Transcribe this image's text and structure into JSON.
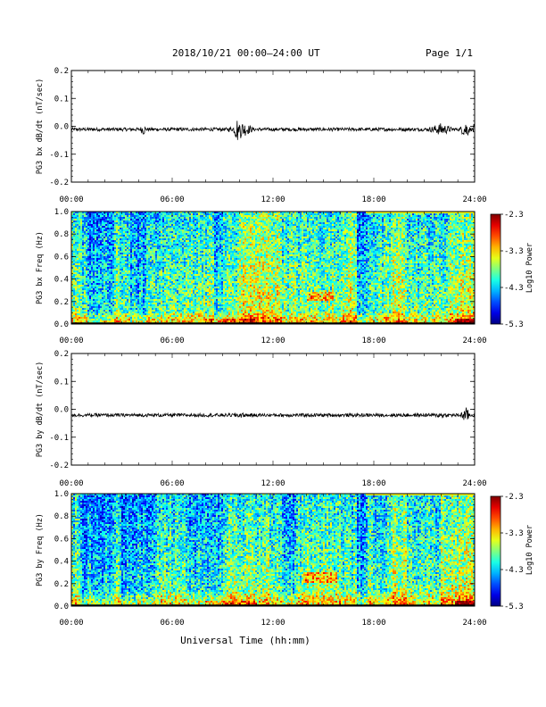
{
  "header": {
    "title": "2018/10/21  00:00–24:00 UT",
    "page": "Page 1/1"
  },
  "x_axis_title": "Universal Time (hh:mm)",
  "chart_data": [
    {
      "type": "line",
      "ylabel": "PG3 bx dB/dt (nT/sec)",
      "xlim": [
        0,
        24
      ],
      "ylim": [
        -0.2,
        0.2
      ],
      "x_ticks": [
        "00:00",
        "06:00",
        "12:00",
        "18:00",
        "24:00"
      ],
      "y_ticks": [
        "-0.2",
        "-0.1",
        "0.0",
        "0.1",
        "0.2"
      ],
      "series": [
        {
          "x": [
            0,
            1,
            2,
            3,
            4,
            4.3,
            4.5,
            5,
            6,
            7,
            8,
            9,
            9.5,
            9.9,
            10,
            11,
            12,
            13,
            14,
            15,
            16,
            17,
            18,
            19,
            20,
            21,
            22,
            23,
            23.5,
            24
          ],
          "y": [
            -0.01,
            -0.01,
            -0.01,
            -0.012,
            -0.01,
            -0.03,
            -0.01,
            -0.012,
            -0.01,
            -0.012,
            -0.01,
            -0.012,
            -0.02,
            0.03,
            -0.04,
            -0.012,
            -0.01,
            -0.012,
            -0.01,
            -0.012,
            -0.01,
            -0.012,
            -0.01,
            -0.012,
            -0.01,
            -0.012,
            -0.03,
            -0.01,
            -0.04,
            0.01
          ]
        }
      ]
    },
    {
      "type": "heatmap",
      "ylabel": "PG3 bx Freq (Hz)",
      "xlim": [
        0,
        24
      ],
      "ylim": [
        0.0,
        1.0
      ],
      "x_ticks": [
        "00:00",
        "06:00",
        "12:00",
        "18:00",
        "24:00"
      ],
      "y_ticks": [
        "0.0",
        "0.2",
        "0.4",
        "0.6",
        "0.8",
        "1.0"
      ],
      "colorbar": {
        "label": "Log10 Power",
        "ticks": [
          "-2.3",
          "-3.3",
          "-4.3",
          "-5.3"
        ],
        "range": [
          -5.3,
          -2.3
        ]
      },
      "features": {
        "quiet_bands_hours": [
          [
            1.0,
            2.5
          ],
          [
            3.5,
            4.5
          ],
          [
            8.5,
            9.0
          ],
          [
            17.0,
            17.6
          ]
        ],
        "active_bands_hours": [
          [
            10.0,
            12.5
          ],
          [
            16.0,
            17.0
          ],
          [
            19.0,
            20.0
          ],
          [
            22.5,
            24.0
          ]
        ],
        "tone_hours": [
          14.0,
          15.6
        ],
        "tone_freq_hz": [
          0.2,
          0.28
        ],
        "low_freq_enhancement_hz": 0.1
      }
    },
    {
      "type": "line",
      "ylabel": "PG3 by dB/dt (nT/sec)",
      "xlim": [
        0,
        24
      ],
      "ylim": [
        -0.2,
        0.2
      ],
      "x_ticks": [
        "00:00",
        "06:00",
        "12:00",
        "18:00",
        "24:00"
      ],
      "y_ticks": [
        "-0.2",
        "-0.1",
        "0.0",
        "0.1",
        "0.2"
      ],
      "series": [
        {
          "x": [
            0,
            1,
            2,
            3,
            4,
            5,
            6,
            7,
            8,
            9,
            10,
            11,
            12,
            13,
            14,
            15,
            16,
            17,
            18,
            19,
            20,
            21,
            22,
            23,
            23.5,
            24
          ],
          "y": [
            -0.02,
            -0.02,
            -0.02,
            -0.022,
            -0.02,
            -0.022,
            -0.02,
            -0.022,
            -0.02,
            -0.022,
            -0.03,
            -0.02,
            -0.022,
            -0.02,
            -0.022,
            -0.02,
            -0.022,
            -0.02,
            -0.022,
            -0.02,
            -0.022,
            -0.02,
            -0.03,
            -0.02,
            -0.045,
            -0.01
          ]
        }
      ]
    },
    {
      "type": "heatmap",
      "ylabel": "PG3 by Freq (Hz)",
      "xlim": [
        0,
        24
      ],
      "ylim": [
        0.0,
        1.0
      ],
      "x_ticks": [
        "00:00",
        "06:00",
        "12:00",
        "18:00",
        "24:00"
      ],
      "y_ticks": [
        "0.0",
        "0.2",
        "0.4",
        "0.6",
        "0.8",
        "1.0"
      ],
      "colorbar": {
        "label": "Log10 Power",
        "ticks": [
          "-2.3",
          "-3.3",
          "-4.3",
          "-5.3"
        ],
        "range": [
          -5.3,
          -2.3
        ]
      },
      "features": {
        "quiet_bands_hours": [
          [
            0.5,
            2.5
          ],
          [
            3.0,
            5.0
          ],
          [
            7.0,
            9.0
          ],
          [
            12.5,
            13.5
          ],
          [
            17.0,
            17.6
          ]
        ],
        "active_bands_hours": [
          [
            19.0,
            20.0
          ],
          [
            22.0,
            24.0
          ]
        ],
        "tone_hours": [
          13.8,
          15.8
        ],
        "tone_freq_hz": [
          0.2,
          0.3
        ],
        "low_freq_enhancement_hz": 0.12
      }
    }
  ]
}
